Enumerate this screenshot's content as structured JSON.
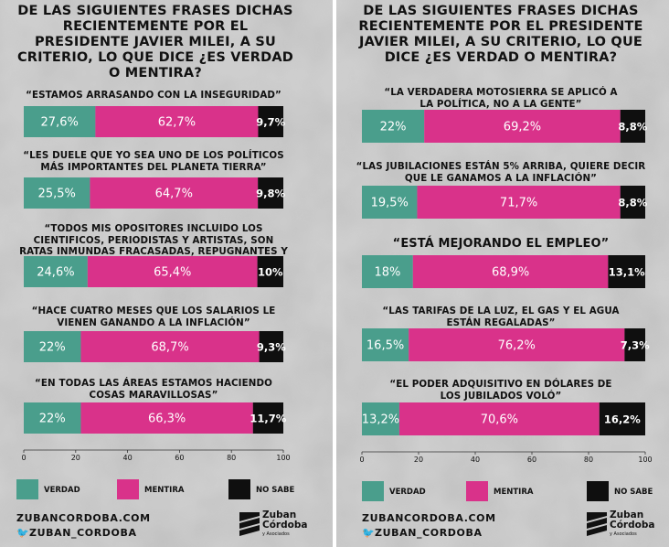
{
  "colors": {
    "verdad": "#4a9e8c",
    "mentira": "#d9328a",
    "no_sabe": "#0f0f0f"
  },
  "legend": {
    "verdad": "VERDAD",
    "mentira": "MENTIRA",
    "no_sabe": "NO SABE"
  },
  "footer": {
    "website": "ZUBANCORDOBA.COM",
    "twitter": "ZUBAN_CORDOBA"
  },
  "logo": {
    "line1": "Zuban",
    "line2": "Córdoba",
    "line3": "y Asociados"
  },
  "panels": [
    {
      "title": "DE LAS SIGUIENTES FRASES DICHAS RECIENTEMENTE POR EL PRESIDENTE JAVIER MILEI, A SU CRITERIO, LO QUE DICE ¿ES VERDAD O MENTIRA?"
    },
    {
      "title": "DE LAS SIGUIENTES FRASES DICHAS RECIENTEMENTE POR EL PRESIDENTE JAVIER MILEI, A SU CRITERIO, LO QUE DICE ¿ES VERDAD O MENTIRA?"
    }
  ],
  "chart_data": [
    {
      "type": "bar",
      "orientation": "horizontal",
      "stacked": true,
      "categories": [
        "“ESTAMOS ARRASANDO CON LA INSEGURIDAD”",
        "“LES DUELE QUE YO SEA UNO DE LOS POLÍTICOS MÁS IMPORTANTES DEL PLANETA TIERRA”",
        "“TODOS MIS OPOSITORES INCLUIDO LOS CIENTIFICOS, PERIODISTAS Y ARTISTAS, SON RATAS INMUNDAS FRACASADAS, REPUGNANTES Y VOMITIVAS”",
        "“HACE CUATRO MESES QUE LOS SALARIOS LE VIENEN GANANDO A LA INFLACIÓN”",
        "“EN TODAS LAS ÁREAS ESTAMOS HACIENDO COSAS MARAVILLOSAS”"
      ],
      "series": [
        {
          "name": "VERDAD",
          "values": [
            27.6,
            25.5,
            24.6,
            22,
            22
          ],
          "labels": [
            "27,6%",
            "25,5%",
            "24,6%",
            "22%",
            "22%"
          ]
        },
        {
          "name": "MENTIRA",
          "values": [
            62.7,
            64.7,
            65.4,
            68.7,
            66.3
          ],
          "labels": [
            "62,7%",
            "64,7%",
            "65,4%",
            "68,7%",
            "66,3%"
          ]
        },
        {
          "name": "NO SABE",
          "values": [
            9.7,
            9.8,
            10,
            9.3,
            11.7
          ],
          "labels": [
            "9,7%",
            "9,8%",
            "10%",
            "9,3%",
            "11,7%"
          ]
        }
      ],
      "xlim": [
        0,
        100
      ],
      "xticks": [
        "0",
        "20",
        "40",
        "60",
        "80",
        "100"
      ],
      "legend_position": "bottom"
    },
    {
      "type": "bar",
      "orientation": "horizontal",
      "stacked": true,
      "categories": [
        "“LA VERDADERA MOTOSIERRA SE APLICÓ A LA POLÍTICA, NO A LA GENTE”",
        "“LAS JUBILACIONES ESTÁN 5% ARRIBA, QUIERE DECIR QUE LE GANAMOS A LA INFLACIÓN”",
        "“ESTÁ MEJORANDO EL EMPLEO”",
        "“LAS TARIFAS DE LA LUZ, EL GAS Y EL AGUA ESTÁN REGALADAS”",
        "“EL PODER ADQUISITIVO EN DÓLARES DE LOS JUBILADOS VOLÓ”"
      ],
      "series": [
        {
          "name": "VERDAD",
          "values": [
            22,
            19.5,
            18,
            16.5,
            13.2
          ],
          "labels": [
            "22%",
            "19,5%",
            "18%",
            "16,5%",
            "13,2%"
          ]
        },
        {
          "name": "MENTIRA",
          "values": [
            69.2,
            71.7,
            68.9,
            76.2,
            70.6
          ],
          "labels": [
            "69,2%",
            "71,7%",
            "68,9%",
            "76,2%",
            "70,6%"
          ]
        },
        {
          "name": "NO SABE",
          "values": [
            8.8,
            8.8,
            13.1,
            7.3,
            16.2
          ],
          "labels": [
            "8,8%",
            "8,8%",
            "13,1%",
            "7,3%",
            "16,2%"
          ]
        }
      ],
      "xlim": [
        0,
        100
      ],
      "xticks": [
        "0",
        "20",
        "40",
        "60",
        "80",
        "100"
      ],
      "legend_position": "bottom"
    }
  ]
}
